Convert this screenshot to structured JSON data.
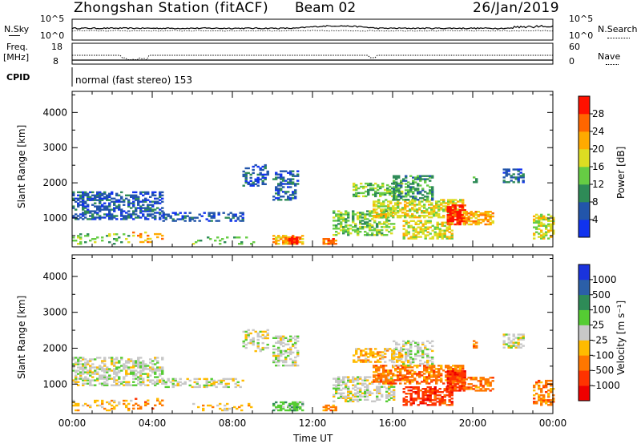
{
  "header": {
    "station": "Zhongshan Station (fitACF)",
    "beam": "Beam 02",
    "date": "26/Jan/2019"
  },
  "summary": {
    "nsky_label": "N.Sky",
    "nsearch_label": "N.Search",
    "freq_label_line1": "Freq.",
    "freq_label_line2": "[MHz]",
    "cpid_label": "CPID",
    "nave_label": "Nave",
    "cpid_text": "normal (fast stereo) 153",
    "noise_ticks_left": [
      "10^5",
      "10^0"
    ],
    "noise_ticks_right": [
      "10^5",
      "10^0"
    ],
    "freq_ticks": [
      "18",
      "8"
    ],
    "nave_ticks": [
      "60",
      "0"
    ]
  },
  "chart_data": [
    {
      "type": "heatmap",
      "name": "power-panel",
      "ylabel": "Slant Range [km]",
      "xlabel": "",
      "ylim": [
        180,
        4600
      ],
      "xlim_hours": [
        0,
        24
      ],
      "yticks": [
        1000,
        2000,
        3000,
        4000
      ],
      "colorbar": {
        "label": "Power [dB]",
        "ticks": [
          4,
          8,
          12,
          16,
          20,
          24,
          28
        ],
        "range": [
          0,
          32
        ],
        "colors": [
          "#1133ee",
          "#2255aa",
          "#2e8b57",
          "#66cc44",
          "#dddd22",
          "#ffaa00",
          "#ff6600",
          "#ff1100"
        ]
      },
      "color_scale": "power"
    },
    {
      "type": "heatmap",
      "name": "velocity-panel",
      "ylabel": "Slant Range [km]",
      "xlabel": "Time UT",
      "ylim": [
        180,
        4600
      ],
      "xlim_hours": [
        0,
        24
      ],
      "yticks": [
        1000,
        2000,
        3000,
        4000
      ],
      "xtick_labels": [
        "00:00",
        "04:00",
        "08:00",
        "12:00",
        "16:00",
        "20:00",
        "00:00"
      ],
      "colorbar": {
        "label": "Velocity [m s⁻¹]",
        "ticks": [
          "1000",
          "500",
          "100",
          "25",
          "-25",
          "-100",
          "-500",
          "-1000"
        ],
        "colors": [
          "#1a33dd",
          "#2b5fa8",
          "#2e8b57",
          "#55cc33",
          "#c8c8c8",
          "#ffbb00",
          "#ff7700",
          "#ff3300",
          "#ee0000"
        ]
      },
      "color_scale": "velocity"
    }
  ]
}
